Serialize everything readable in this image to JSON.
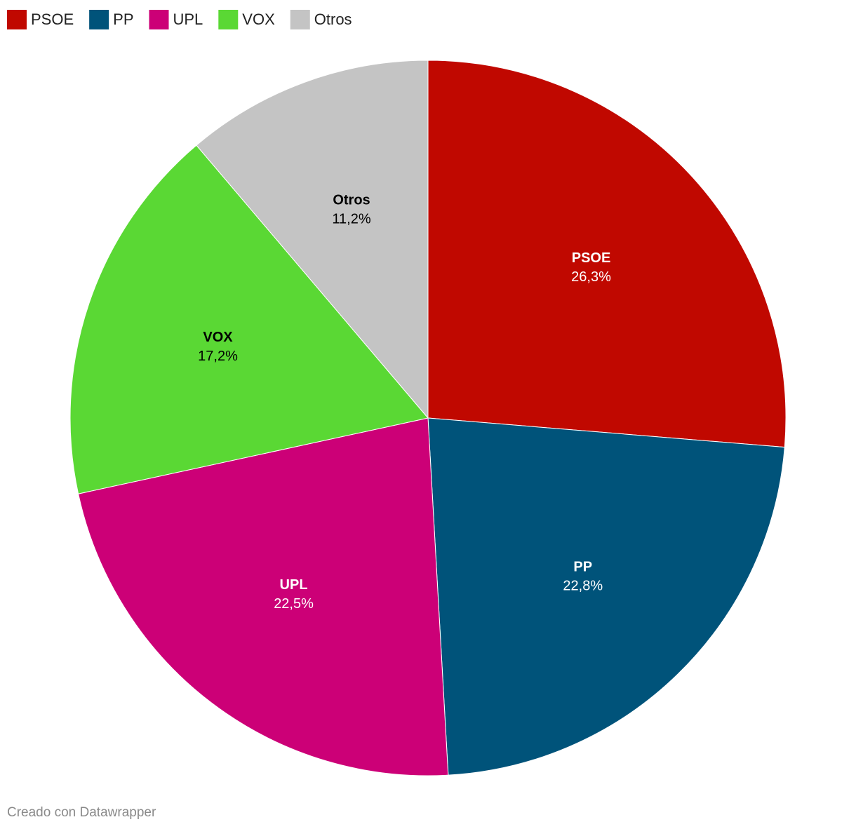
{
  "chart_data": {
    "type": "pie",
    "categories": [
      "PSOE",
      "PP",
      "UPL",
      "VOX",
      "Otros"
    ],
    "values": [
      26.3,
      22.8,
      22.5,
      17.2,
      11.2
    ],
    "value_labels": [
      "26,3%",
      "22,8%",
      "22,5%",
      "17,2%",
      "11,2%"
    ],
    "colors": [
      "#c00800",
      "#00537a",
      "#cc0077",
      "#5ad834",
      "#c4c4c4"
    ],
    "legend": "top-left"
  },
  "footer": "Creado con Datawrapper"
}
